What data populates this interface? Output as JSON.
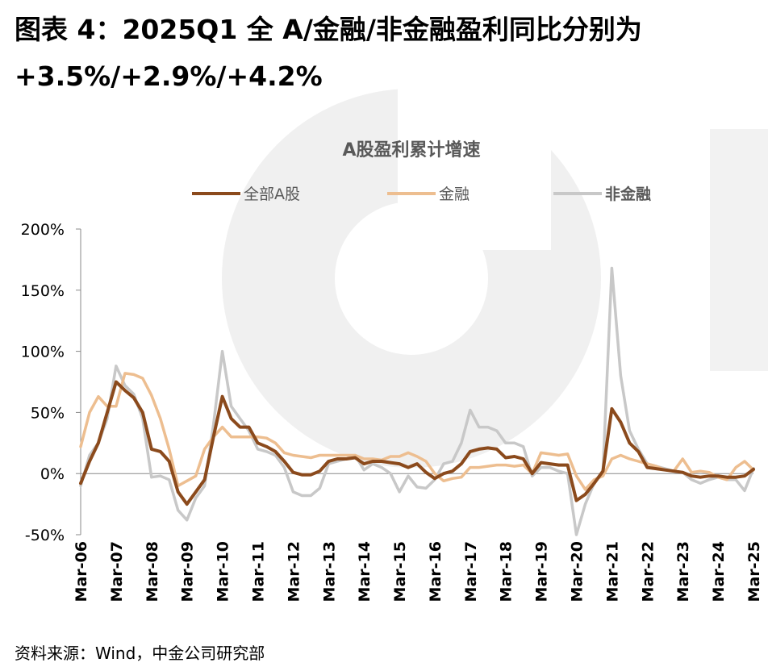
{
  "heading": {
    "line1": "图表 4：2025Q1 全 A/金融/非金融盈利同比分别为",
    "line2": "+3.5%/+2.9%/+4.2%"
  },
  "source": "资料来源：Wind，中金公司研究部",
  "chart_data": {
    "type": "line",
    "title": "A股盈利累计增速",
    "legend_position": "top",
    "ylim": [
      -50,
      200
    ],
    "yticks": [
      "-50%",
      "0%",
      "50%",
      "100%",
      "150%",
      "200%"
    ],
    "ytick_values": [
      -50,
      0,
      50,
      100,
      150,
      200
    ],
    "xtick_labels": [
      "Mar-06",
      "Mar-07",
      "Mar-08",
      "Mar-09",
      "Mar-10",
      "Mar-11",
      "Mar-12",
      "Mar-13",
      "Mar-14",
      "Mar-15",
      "Mar-16",
      "Mar-17",
      "Mar-18",
      "Mar-19",
      "Mar-20",
      "Mar-21",
      "Mar-22",
      "Mar-23",
      "Mar-24",
      "Mar-25"
    ],
    "x": [
      "2006Q1",
      "2006Q2",
      "2006Q3",
      "2006Q4",
      "2007Q1",
      "2007Q2",
      "2007Q3",
      "2007Q4",
      "2008Q1",
      "2008Q2",
      "2008Q3",
      "2008Q4",
      "2009Q1",
      "2009Q2",
      "2009Q3",
      "2009Q4",
      "2010Q1",
      "2010Q2",
      "2010Q3",
      "2010Q4",
      "2011Q1",
      "2011Q2",
      "2011Q3",
      "2011Q4",
      "2012Q1",
      "2012Q2",
      "2012Q3",
      "2012Q4",
      "2013Q1",
      "2013Q2",
      "2013Q3",
      "2013Q4",
      "2014Q1",
      "2014Q2",
      "2014Q3",
      "2014Q4",
      "2015Q1",
      "2015Q2",
      "2015Q3",
      "2015Q4",
      "2016Q1",
      "2016Q2",
      "2016Q3",
      "2016Q4",
      "2017Q1",
      "2017Q2",
      "2017Q3",
      "2017Q4",
      "2018Q1",
      "2018Q2",
      "2018Q3",
      "2018Q4",
      "2019Q1",
      "2019Q2",
      "2019Q3",
      "2019Q4",
      "2020Q1",
      "2020Q2",
      "2020Q3",
      "2020Q4",
      "2021Q1",
      "2021Q2",
      "2021Q3",
      "2021Q4",
      "2022Q1",
      "2022Q2",
      "2022Q3",
      "2022Q4",
      "2023Q1",
      "2023Q2",
      "2023Q3",
      "2023Q4",
      "2024Q1",
      "2024Q2",
      "2024Q3",
      "2024Q4",
      "2025Q1"
    ],
    "series": [
      {
        "name": "全部A股",
        "color": "#8B4A1C",
        "values": [
          -8,
          10,
          25,
          50,
          75,
          68,
          62,
          50,
          20,
          18,
          10,
          -15,
          -25,
          -15,
          -5,
          30,
          63,
          45,
          38,
          38,
          25,
          22,
          18,
          10,
          1,
          -1,
          -1,
          2,
          10,
          12,
          12,
          13,
          8,
          10,
          10,
          9,
          8,
          5,
          8,
          1,
          -4,
          0,
          2,
          8,
          18,
          20,
          21,
          20,
          13,
          14,
          12,
          0,
          9,
          8,
          7,
          7,
          -22,
          -17,
          -8,
          2,
          53,
          42,
          25,
          18,
          5,
          4,
          3,
          2,
          1,
          -2,
          -3,
          -2,
          -2,
          -3,
          -3,
          -2,
          3.5
        ],
        "highlight": true
      },
      {
        "name": "金融",
        "color": "#EDBE90",
        "values": [
          22,
          50,
          63,
          55,
          55,
          82,
          81,
          78,
          64,
          45,
          20,
          -10,
          -6,
          -2,
          20,
          30,
          38,
          30,
          30,
          30,
          30,
          29,
          25,
          17,
          15,
          14,
          13,
          15,
          15,
          15,
          15,
          15,
          12,
          12,
          11,
          14,
          14,
          17,
          14,
          10,
          0,
          -6,
          -4,
          -3,
          5,
          5,
          6,
          7,
          7,
          6,
          7,
          0,
          17,
          16,
          15,
          16,
          -2,
          -13,
          -5,
          -2,
          12,
          15,
          12,
          10,
          8,
          6,
          3,
          2,
          12,
          1,
          2,
          1,
          -3,
          -5,
          5,
          10,
          2.9
        ]
      },
      {
        "name": "非金融",
        "color": "#C8C8C8",
        "values": [
          -10,
          15,
          25,
          45,
          88,
          72,
          65,
          45,
          -3,
          -2,
          -5,
          -30,
          -38,
          -20,
          -10,
          40,
          100,
          55,
          45,
          35,
          20,
          18,
          15,
          5,
          -15,
          -18,
          -18,
          -12,
          8,
          10,
          12,
          15,
          3,
          8,
          5,
          0,
          -15,
          -2,
          -11,
          -12,
          -5,
          8,
          10,
          25,
          52,
          38,
          38,
          35,
          25,
          25,
          22,
          -2,
          5,
          5,
          2,
          0,
          -50,
          -25,
          -8,
          2,
          168,
          80,
          35,
          20,
          8,
          6,
          4,
          2,
          1,
          -5,
          -8,
          -5,
          -3,
          -5,
          -5,
          -14,
          4.2
        ]
      }
    ]
  },
  "colors": {
    "axis": "#888888",
    "tick_text": "#000000",
    "title_text": "#595959",
    "watermark": "#f0f0f0"
  }
}
